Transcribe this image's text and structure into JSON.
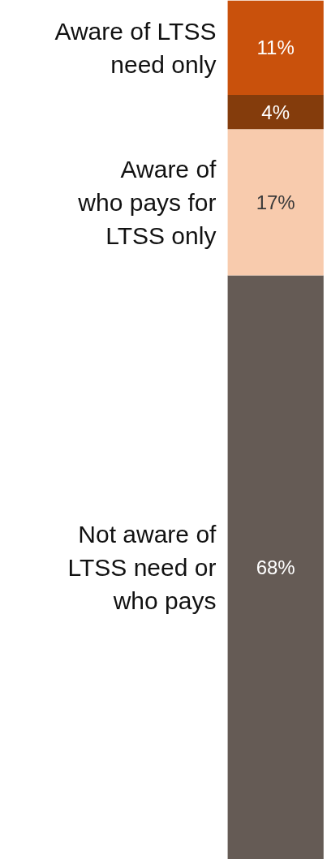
{
  "chart_data": {
    "type": "bar",
    "stacked": true,
    "categories": [
      null
    ],
    "series": [
      {
        "name": "Not aware of\nLTSS need or\nwho pays",
        "color": "#655b55",
        "values": [
          68
        ],
        "value_labels": [
          "68%"
        ]
      },
      {
        "name": "Aware of\nwho pays for\nLTSS only",
        "color": "#f8cbad",
        "values": [
          17
        ],
        "value_labels": [
          "17%"
        ]
      },
      {
        "color": "#843c0c",
        "values": [
          4
        ],
        "value_labels": [
          "4%"
        ]
      },
      {
        "name": "Aware of LTSS\nneed only",
        "color": "#c9510c",
        "values": [
          11
        ],
        "value_labels": [
          "11%"
        ]
      }
    ]
  }
}
